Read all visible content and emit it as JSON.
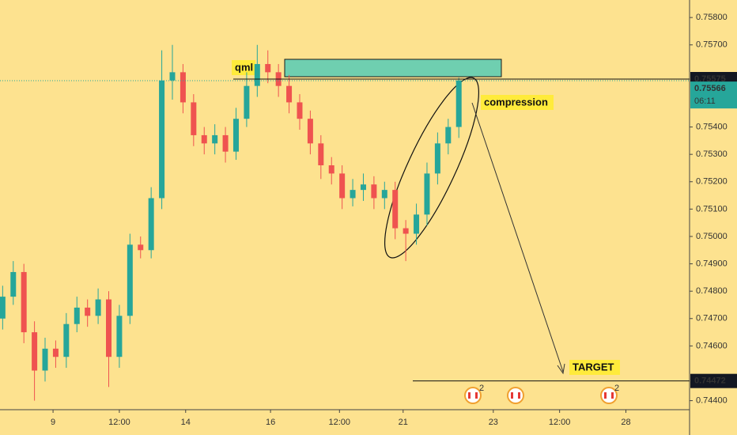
{
  "chart_data": {
    "type": "candlestick",
    "up_color": "#26a69a",
    "down_color": "#ef5350",
    "x": [
      1,
      5,
      9,
      13,
      17,
      21,
      25,
      29,
      33,
      37,
      41,
      45,
      49,
      53,
      57,
      61,
      65,
      69,
      73,
      77,
      81,
      85,
      89,
      93,
      97,
      101,
      105,
      109,
      113,
      117,
      121,
      125,
      129,
      133,
      137,
      141,
      145,
      149,
      153,
      157,
      161,
      165,
      169,
      173
    ],
    "open": [
      0.747,
      0.7478,
      0.7487,
      0.7465,
      0.7451,
      0.7459,
      0.7456,
      0.7468,
      0.7474,
      0.7471,
      0.7477,
      0.7456,
      0.7471,
      0.7497,
      0.7495,
      0.7514,
      0.7557,
      0.756,
      0.7549,
      0.7537,
      0.7534,
      0.7537,
      0.7531,
      0.7543,
      0.7555,
      0.7563,
      0.756,
      0.7555,
      0.7549,
      0.7543,
      0.7534,
      0.7526,
      0.7523,
      0.7514,
      0.7517,
      0.7519,
      0.7514,
      0.7517,
      0.7503,
      0.7501,
      0.7508,
      0.7523,
      0.7534,
      0.754
    ],
    "high": [
      0.7482,
      0.7491,
      0.749,
      0.7469,
      0.7463,
      0.7462,
      0.7472,
      0.7478,
      0.7477,
      0.7481,
      0.748,
      0.7475,
      0.7501,
      0.75,
      0.7518,
      0.7568,
      0.757,
      0.7563,
      0.7552,
      0.754,
      0.7541,
      0.754,
      0.7547,
      0.756,
      0.757,
      0.7568,
      0.7563,
      0.7559,
      0.7552,
      0.7546,
      0.7537,
      0.7529,
      0.7526,
      0.7521,
      0.7523,
      0.7522,
      0.752,
      0.752,
      0.7506,
      0.7512,
      0.7527,
      0.7538,
      0.7543,
      0.7558
    ],
    "low": [
      0.7466,
      0.7475,
      0.7461,
      0.744,
      0.7447,
      0.7452,
      0.7452,
      0.7465,
      0.7467,
      0.7468,
      0.7445,
      0.7452,
      0.7468,
      0.7492,
      0.7492,
      0.751,
      0.755,
      0.7545,
      0.7533,
      0.753,
      0.753,
      0.7527,
      0.7528,
      0.754,
      0.7551,
      0.7556,
      0.7551,
      0.7545,
      0.7539,
      0.753,
      0.7521,
      0.7519,
      0.751,
      0.7511,
      0.7513,
      0.751,
      0.751,
      0.7499,
      0.7491,
      0.7497,
      0.7504,
      0.7519,
      0.753,
      0.7536
    ],
    "close": [
      0.7478,
      0.7487,
      0.7465,
      0.7451,
      0.7459,
      0.7456,
      0.7468,
      0.7474,
      0.7471,
      0.7477,
      0.7456,
      0.7471,
      0.7497,
      0.7495,
      0.7514,
      0.7557,
      0.756,
      0.7549,
      0.7537,
      0.7534,
      0.7537,
      0.7531,
      0.7543,
      0.7555,
      0.7563,
      0.756,
      0.7555,
      0.7549,
      0.7543,
      0.7534,
      0.7526,
      0.7523,
      0.7514,
      0.7517,
      0.7519,
      0.7514,
      0.7517,
      0.7503,
      0.7501,
      0.7508,
      0.7523,
      0.7534,
      0.754,
      0.7557
    ],
    "xlim": [
      0,
      260
    ],
    "xticks": [
      {
        "value": 20,
        "label": "9"
      },
      {
        "value": 45,
        "label": "12:00"
      },
      {
        "value": 70,
        "label": "14"
      },
      {
        "value": 102,
        "label": "16"
      },
      {
        "value": 128,
        "label": "12:00"
      },
      {
        "value": 152,
        "label": "21"
      },
      {
        "value": 186,
        "label": "23"
      },
      {
        "value": 211,
        "label": "12:00"
      },
      {
        "value": 236,
        "label": "28"
      }
    ],
    "ylim": [
      0.74367,
      0.75864
    ],
    "yticks": [
      {
        "value": 0.758,
        "label": "0.75800"
      },
      {
        "value": 0.757,
        "label": "0.75700"
      },
      {
        "value": 0.754,
        "label": "0.75400"
      },
      {
        "value": 0.753,
        "label": "0.75300"
      },
      {
        "value": 0.752,
        "label": "0.75200"
      },
      {
        "value": 0.751,
        "label": "0.75100"
      },
      {
        "value": 0.75,
        "label": "0.75000"
      },
      {
        "value": 0.749,
        "label": "0.74900"
      },
      {
        "value": 0.748,
        "label": "0.74800"
      },
      {
        "value": 0.747,
        "label": "0.74700"
      },
      {
        "value": 0.746,
        "label": "0.74600"
      },
      {
        "value": 0.744,
        "label": "0.74400"
      }
    ],
    "price_lines": [
      {
        "value": 0.75575,
        "label": "0.75575"
      },
      {
        "value": 0.74472,
        "label": "0.74472"
      }
    ],
    "current_price": {
      "value": 0.75566,
      "label": "0.75566",
      "countdown": "06:11"
    },
    "annotations": [
      "qml",
      "compression",
      "TARGET"
    ],
    "event_badges": [
      "2",
      "2"
    ]
  }
}
